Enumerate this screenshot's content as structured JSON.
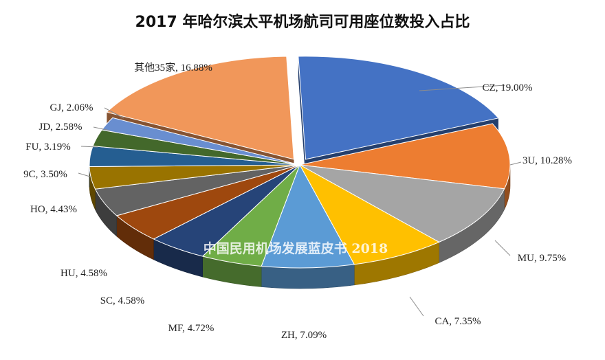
{
  "chart_data": {
    "type": "pie",
    "title": "2017 年哈尔滨太平机场航司可用座位数投入占比",
    "watermark": "中国民用机场发展蓝皮书 2018",
    "slices": [
      {
        "name": "CZ",
        "value": 19.0,
        "label": "CZ, 19.00%",
        "color": "#4472C4",
        "explode": true
      },
      {
        "name": "3U",
        "value": 10.28,
        "label": "3U, 10.28%",
        "color": "#ED7D31"
      },
      {
        "name": "MU",
        "value": 9.75,
        "label": "MU, 9.75%",
        "color": "#A5A5A5"
      },
      {
        "name": "CA",
        "value": 7.35,
        "label": "CA, 7.35%",
        "color": "#FFC000"
      },
      {
        "name": "ZH",
        "value": 7.09,
        "label": "ZH, 7.09%",
        "color": "#5B9BD5"
      },
      {
        "name": "MF",
        "value": 4.72,
        "label": "MF, 4.72%",
        "color": "#70AD47"
      },
      {
        "name": "SC",
        "value": 4.58,
        "label": "SC, 4.58%",
        "color": "#264478"
      },
      {
        "name": "HU",
        "value": 4.58,
        "label": "HU, 4.58%",
        "color": "#9E480E"
      },
      {
        "name": "HO",
        "value": 4.43,
        "label": "HO, 4.43%",
        "color": "#636363"
      },
      {
        "name": "9C",
        "value": 3.5,
        "label": "9C, 3.50%",
        "color": "#997300"
      },
      {
        "name": "FU",
        "value": 3.19,
        "label": "FU, 3.19%",
        "color": "#255E91"
      },
      {
        "name": "JD",
        "value": 2.58,
        "label": "JD, 2.58%",
        "color": "#43682B"
      },
      {
        "name": "GJ",
        "value": 2.06,
        "label": "GJ, 2.06%",
        "color": "#698ED0"
      },
      {
        "name": "其他35家",
        "value": 16.88,
        "label": "其他35家, 16.88%",
        "color": "#F1975A",
        "explode": true
      }
    ]
  }
}
